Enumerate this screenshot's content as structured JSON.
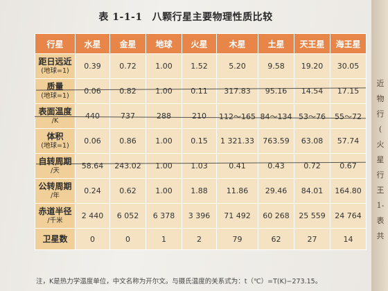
{
  "title": {
    "number": "表 1-1-1",
    "text": "八颗行星主要物理性质比较"
  },
  "table": {
    "header": [
      "行星",
      "水星",
      "金星",
      "地球",
      "火星",
      "木星",
      "土星",
      "天王星",
      "海王星"
    ],
    "rows": [
      {
        "label": "距日远近",
        "sub": "(地球=1)",
        "values": [
          "0.39",
          "0.72",
          "1.00",
          "1.52",
          "5.20",
          "9.58",
          "19.20",
          "30.05"
        ]
      },
      {
        "label": "质量",
        "sub": "(地球=1)",
        "values": [
          "0.06",
          "0.82",
          "1.00",
          "0.11",
          "317.83",
          "95.16",
          "14.54",
          "17.15"
        ]
      },
      {
        "label": "表面温度",
        "sub": "/K",
        "values": [
          "440",
          "737",
          "288",
          "210",
          "112～165",
          "84～134",
          "53～76",
          "55～72"
        ]
      },
      {
        "label": "体积",
        "sub": "(地球=1)",
        "values": [
          "0.06",
          "0.86",
          "1.00",
          "0.15",
          "1 321.33",
          "763.59",
          "63.08",
          "57.74"
        ]
      },
      {
        "label": "自转周期",
        "sub": "/天",
        "values": [
          "58.64",
          "243.02",
          "1.00",
          "1.03",
          "0.41",
          "0.43",
          "0.72",
          "0.67"
        ]
      },
      {
        "label": "公转周期",
        "sub": "/年",
        "values": [
          "0.24",
          "0.62",
          "1.00",
          "1.88",
          "11.86",
          "29.46",
          "84.01",
          "164.80"
        ]
      },
      {
        "label": "赤道半径",
        "sub": "/千米",
        "values": [
          "2 440",
          "6 052",
          "6 378",
          "3 396",
          "71 492",
          "60 268",
          "25 559",
          "24 764"
        ]
      },
      {
        "label": "卫星数",
        "sub": "",
        "values": [
          "0",
          "0",
          "1",
          "2",
          "79",
          "62",
          "27",
          "14"
        ]
      }
    ]
  },
  "note": "注，K是热力学温度单位，中文名称为开尔文。与摄氏温度的关系式为：t（℃）=T(K)−273.15。",
  "side_text": [
    "近",
    "物",
    "行",
    "(",
    "火",
    "星",
    "行",
    "王",
    "1-",
    "表",
    "共"
  ]
}
